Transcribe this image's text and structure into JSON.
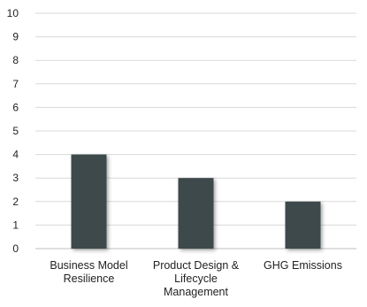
{
  "chart_data": {
    "type": "bar",
    "categories": [
      [
        "Business Model",
        "Resilience"
      ],
      [
        "Product Design &",
        "Lifecycle",
        "Management"
      ],
      [
        "GHG Emissions"
      ]
    ],
    "values": [
      4,
      3,
      2
    ],
    "ylim": [
      0,
      10
    ],
    "yticks": [
      "0",
      "1",
      "2",
      "3",
      "4",
      "5",
      "6",
      "7",
      "8",
      "9",
      "10"
    ],
    "grid": true,
    "legend": "none",
    "bar_color": "#3c4a4c",
    "grid_color": "#d9d9d9"
  }
}
